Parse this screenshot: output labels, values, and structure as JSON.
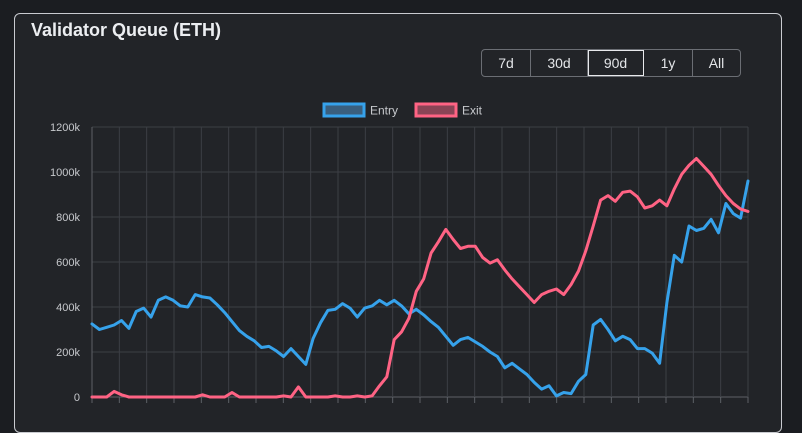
{
  "title": "Validator Queue (ETH)",
  "range_buttons": [
    {
      "label": "7d",
      "active": false
    },
    {
      "label": "30d",
      "active": false
    },
    {
      "label": "90d",
      "active": true
    },
    {
      "label": "1y",
      "active": false
    },
    {
      "label": "All",
      "active": false
    }
  ],
  "chart_data": {
    "type": "line",
    "title": "",
    "xlabel": "",
    "ylabel": "",
    "ylim": [
      0,
      1200000
    ],
    "yticks": [
      "0",
      "200k",
      "400k",
      "600k",
      "800k",
      "1000k",
      "1200k"
    ],
    "grid": true,
    "legend": "top-center",
    "series": [
      {
        "name": "Entry",
        "color": "#36a2eb",
        "fill": "#3a5f7e",
        "values": [
          325000,
          300000,
          310000,
          320000,
          340000,
          305000,
          380000,
          395000,
          355000,
          430000,
          445000,
          430000,
          405000,
          400000,
          455000,
          445000,
          440000,
          410000,
          375000,
          335000,
          295000,
          270000,
          250000,
          220000,
          225000,
          205000,
          180000,
          215000,
          180000,
          145000,
          260000,
          330000,
          385000,
          390000,
          415000,
          395000,
          355000,
          395000,
          405000,
          430000,
          410000,
          430000,
          405000,
          370000,
          390000,
          365000,
          335000,
          310000,
          270000,
          230000,
          255000,
          265000,
          245000,
          225000,
          200000,
          180000,
          130000,
          150000,
          125000,
          100000,
          65000,
          35000,
          50000,
          5000,
          20000,
          15000,
          70000,
          100000,
          320000,
          345000,
          300000,
          250000,
          270000,
          255000,
          215000,
          215000,
          195000,
          150000,
          420000,
          630000,
          600000,
          760000,
          740000,
          750000,
          790000,
          730000,
          860000,
          815000,
          795000,
          960000
        ]
      },
      {
        "name": "Exit",
        "color": "#ff6384",
        "fill": "#8a4456",
        "values": [
          0,
          0,
          0,
          25000,
          10000,
          0,
          0,
          0,
          0,
          0,
          0,
          0,
          0,
          0,
          0,
          10000,
          0,
          0,
          0,
          20000,
          0,
          0,
          0,
          0,
          0,
          0,
          5000,
          0,
          45000,
          0,
          0,
          0,
          0,
          5000,
          0,
          0,
          5000,
          0,
          5000,
          50000,
          90000,
          255000,
          290000,
          350000,
          470000,
          525000,
          640000,
          690000,
          745000,
          700000,
          660000,
          670000,
          670000,
          620000,
          595000,
          610000,
          565000,
          525000,
          490000,
          455000,
          420000,
          455000,
          470000,
          480000,
          455000,
          500000,
          560000,
          650000,
          760000,
          875000,
          895000,
          870000,
          910000,
          915000,
          890000,
          840000,
          850000,
          875000,
          850000,
          925000,
          990000,
          1030000,
          1060000,
          1025000,
          990000,
          940000,
          895000,
          860000,
          835000,
          825000
        ]
      }
    ]
  }
}
